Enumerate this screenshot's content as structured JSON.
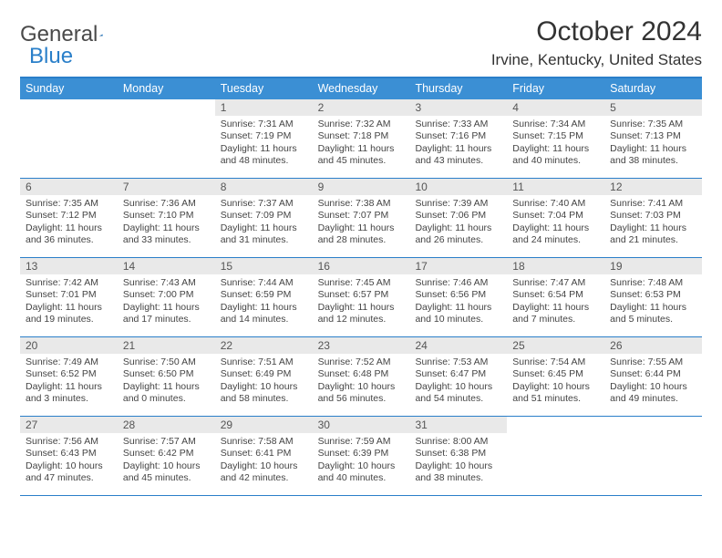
{
  "logo": {
    "text_a": "General",
    "text_b": "Blue"
  },
  "title": "October 2024",
  "location": "Irvine, Kentucky, United States",
  "colors": {
    "header_bg": "#3b8fd4",
    "rule": "#2a7fc9",
    "daynum_bg": "#e9e9e9",
    "text": "#333333",
    "body_text": "#444444"
  },
  "day_names": [
    "Sunday",
    "Monday",
    "Tuesday",
    "Wednesday",
    "Thursday",
    "Friday",
    "Saturday"
  ],
  "weeks": [
    [
      null,
      null,
      {
        "n": "1",
        "sr": "7:31 AM",
        "ss": "7:19 PM",
        "dl": "11 hours and 48 minutes."
      },
      {
        "n": "2",
        "sr": "7:32 AM",
        "ss": "7:18 PM",
        "dl": "11 hours and 45 minutes."
      },
      {
        "n": "3",
        "sr": "7:33 AM",
        "ss": "7:16 PM",
        "dl": "11 hours and 43 minutes."
      },
      {
        "n": "4",
        "sr": "7:34 AM",
        "ss": "7:15 PM",
        "dl": "11 hours and 40 minutes."
      },
      {
        "n": "5",
        "sr": "7:35 AM",
        "ss": "7:13 PM",
        "dl": "11 hours and 38 minutes."
      }
    ],
    [
      {
        "n": "6",
        "sr": "7:35 AM",
        "ss": "7:12 PM",
        "dl": "11 hours and 36 minutes."
      },
      {
        "n": "7",
        "sr": "7:36 AM",
        "ss": "7:10 PM",
        "dl": "11 hours and 33 minutes."
      },
      {
        "n": "8",
        "sr": "7:37 AM",
        "ss": "7:09 PM",
        "dl": "11 hours and 31 minutes."
      },
      {
        "n": "9",
        "sr": "7:38 AM",
        "ss": "7:07 PM",
        "dl": "11 hours and 28 minutes."
      },
      {
        "n": "10",
        "sr": "7:39 AM",
        "ss": "7:06 PM",
        "dl": "11 hours and 26 minutes."
      },
      {
        "n": "11",
        "sr": "7:40 AM",
        "ss": "7:04 PM",
        "dl": "11 hours and 24 minutes."
      },
      {
        "n": "12",
        "sr": "7:41 AM",
        "ss": "7:03 PM",
        "dl": "11 hours and 21 minutes."
      }
    ],
    [
      {
        "n": "13",
        "sr": "7:42 AM",
        "ss": "7:01 PM",
        "dl": "11 hours and 19 minutes."
      },
      {
        "n": "14",
        "sr": "7:43 AM",
        "ss": "7:00 PM",
        "dl": "11 hours and 17 minutes."
      },
      {
        "n": "15",
        "sr": "7:44 AM",
        "ss": "6:59 PM",
        "dl": "11 hours and 14 minutes."
      },
      {
        "n": "16",
        "sr": "7:45 AM",
        "ss": "6:57 PM",
        "dl": "11 hours and 12 minutes."
      },
      {
        "n": "17",
        "sr": "7:46 AM",
        "ss": "6:56 PM",
        "dl": "11 hours and 10 minutes."
      },
      {
        "n": "18",
        "sr": "7:47 AM",
        "ss": "6:54 PM",
        "dl": "11 hours and 7 minutes."
      },
      {
        "n": "19",
        "sr": "7:48 AM",
        "ss": "6:53 PM",
        "dl": "11 hours and 5 minutes."
      }
    ],
    [
      {
        "n": "20",
        "sr": "7:49 AM",
        "ss": "6:52 PM",
        "dl": "11 hours and 3 minutes."
      },
      {
        "n": "21",
        "sr": "7:50 AM",
        "ss": "6:50 PM",
        "dl": "11 hours and 0 minutes."
      },
      {
        "n": "22",
        "sr": "7:51 AM",
        "ss": "6:49 PM",
        "dl": "10 hours and 58 minutes."
      },
      {
        "n": "23",
        "sr": "7:52 AM",
        "ss": "6:48 PM",
        "dl": "10 hours and 56 minutes."
      },
      {
        "n": "24",
        "sr": "7:53 AM",
        "ss": "6:47 PM",
        "dl": "10 hours and 54 minutes."
      },
      {
        "n": "25",
        "sr": "7:54 AM",
        "ss": "6:45 PM",
        "dl": "10 hours and 51 minutes."
      },
      {
        "n": "26",
        "sr": "7:55 AM",
        "ss": "6:44 PM",
        "dl": "10 hours and 49 minutes."
      }
    ],
    [
      {
        "n": "27",
        "sr": "7:56 AM",
        "ss": "6:43 PM",
        "dl": "10 hours and 47 minutes."
      },
      {
        "n": "28",
        "sr": "7:57 AM",
        "ss": "6:42 PM",
        "dl": "10 hours and 45 minutes."
      },
      {
        "n": "29",
        "sr": "7:58 AM",
        "ss": "6:41 PM",
        "dl": "10 hours and 42 minutes."
      },
      {
        "n": "30",
        "sr": "7:59 AM",
        "ss": "6:39 PM",
        "dl": "10 hours and 40 minutes."
      },
      {
        "n": "31",
        "sr": "8:00 AM",
        "ss": "6:38 PM",
        "dl": "10 hours and 38 minutes."
      },
      null,
      null
    ]
  ],
  "labels": {
    "sunrise": "Sunrise:",
    "sunset": "Sunset:",
    "daylight": "Daylight:"
  }
}
